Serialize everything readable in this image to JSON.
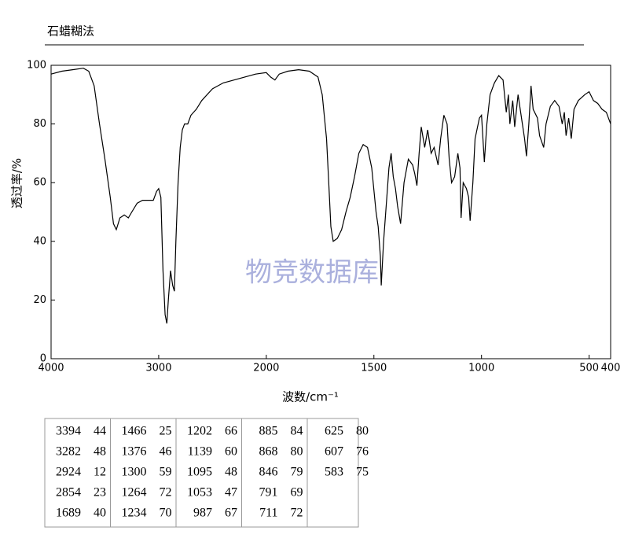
{
  "chart_data": {
    "type": "line",
    "title": "石蜡糊法",
    "watermark": "物竞数据库",
    "x_label": "波数/cm⁻¹",
    "y_label": "透过率/%",
    "color": "#000000",
    "xlim": [
      4000,
      400
    ],
    "x_scale_change": 2000,
    "xticks": [
      4000,
      3000,
      2000,
      1500,
      1000,
      500,
      400
    ],
    "ylim": [
      0,
      100
    ],
    "yticks": [
      0,
      20,
      40,
      60,
      80,
      100
    ],
    "x": [
      4000,
      3900,
      3800,
      3700,
      3650,
      3600,
      3550,
      3500,
      3450,
      3420,
      3394,
      3360,
      3320,
      3282,
      3250,
      3200,
      3150,
      3100,
      3050,
      3020,
      3000,
      2980,
      2960,
      2940,
      2924,
      2910,
      2890,
      2870,
      2854,
      2840,
      2820,
      2800,
      2780,
      2760,
      2730,
      2700,
      2650,
      2600,
      2500,
      2400,
      2300,
      2200,
      2100,
      2000,
      1980,
      1960,
      1940,
      1900,
      1850,
      1800,
      1760,
      1740,
      1720,
      1710,
      1700,
      1689,
      1670,
      1650,
      1630,
      1610,
      1590,
      1570,
      1550,
      1530,
      1510,
      1490,
      1480,
      1470,
      1466,
      1455,
      1440,
      1430,
      1420,
      1410,
      1400,
      1390,
      1376,
      1360,
      1340,
      1320,
      1310,
      1300,
      1290,
      1280,
      1264,
      1250,
      1234,
      1220,
      1202,
      1190,
      1175,
      1160,
      1150,
      1139,
      1125,
      1110,
      1100,
      1095,
      1085,
      1070,
      1060,
      1053,
      1040,
      1030,
      1010,
      1000,
      987,
      975,
      960,
      940,
      920,
      900,
      885,
      875,
      868,
      855,
      846,
      830,
      810,
      800,
      791,
      780,
      770,
      760,
      740,
      730,
      711,
      700,
      680,
      660,
      640,
      625,
      615,
      607,
      595,
      583,
      570,
      550,
      520,
      500,
      480,
      460,
      440,
      420,
      400
    ],
    "values": [
      97,
      98,
      98.5,
      99,
      98,
      93,
      80,
      68,
      55,
      46,
      44,
      48,
      49,
      48,
      50,
      53,
      54,
      54,
      54,
      57,
      58,
      55,
      30,
      15,
      12,
      20,
      30,
      25,
      23,
      40,
      60,
      72,
      78,
      80,
      80,
      83,
      85,
      88,
      92,
      94,
      95,
      96,
      97,
      97.5,
      96,
      95,
      97,
      98,
      98.5,
      98,
      96,
      90,
      75,
      60,
      45,
      40,
      41,
      44,
      50,
      55,
      62,
      70,
      73,
      72,
      65,
      50,
      45,
      35,
      25,
      40,
      55,
      65,
      70,
      62,
      58,
      52,
      46,
      60,
      68,
      66,
      63,
      59,
      70,
      79,
      72,
      78,
      70,
      72,
      66,
      75,
      83,
      80,
      68,
      60,
      62,
      70,
      65,
      48,
      60,
      58,
      55,
      47,
      60,
      75,
      82,
      83,
      67,
      80,
      90,
      94,
      96.5,
      95,
      84,
      90,
      80,
      88,
      79,
      90,
      80,
      75,
      69,
      80,
      93,
      85,
      82,
      76,
      72,
      80,
      86,
      88,
      86,
      80,
      84,
      76,
      82,
      75,
      85,
      88,
      90,
      91,
      88,
      87,
      85,
      84,
      80
    ]
  },
  "table": {
    "columns": [
      [
        [
          3394,
          44
        ],
        [
          3282,
          48
        ],
        [
          2924,
          12
        ],
        [
          2854,
          23
        ],
        [
          1689,
          40
        ]
      ],
      [
        [
          1466,
          25
        ],
        [
          1376,
          46
        ],
        [
          1300,
          59
        ],
        [
          1264,
          72
        ],
        [
          1234,
          70
        ]
      ],
      [
        [
          1202,
          66
        ],
        [
          1139,
          60
        ],
        [
          1095,
          48
        ],
        [
          1053,
          47
        ],
        [
          987,
          67
        ]
      ],
      [
        [
          885,
          84
        ],
        [
          868,
          80
        ],
        [
          846,
          79
        ],
        [
          791,
          69
        ],
        [
          711,
          72
        ]
      ],
      [
        [
          625,
          80
        ],
        [
          607,
          76
        ],
        [
          583,
          75
        ]
      ]
    ]
  }
}
